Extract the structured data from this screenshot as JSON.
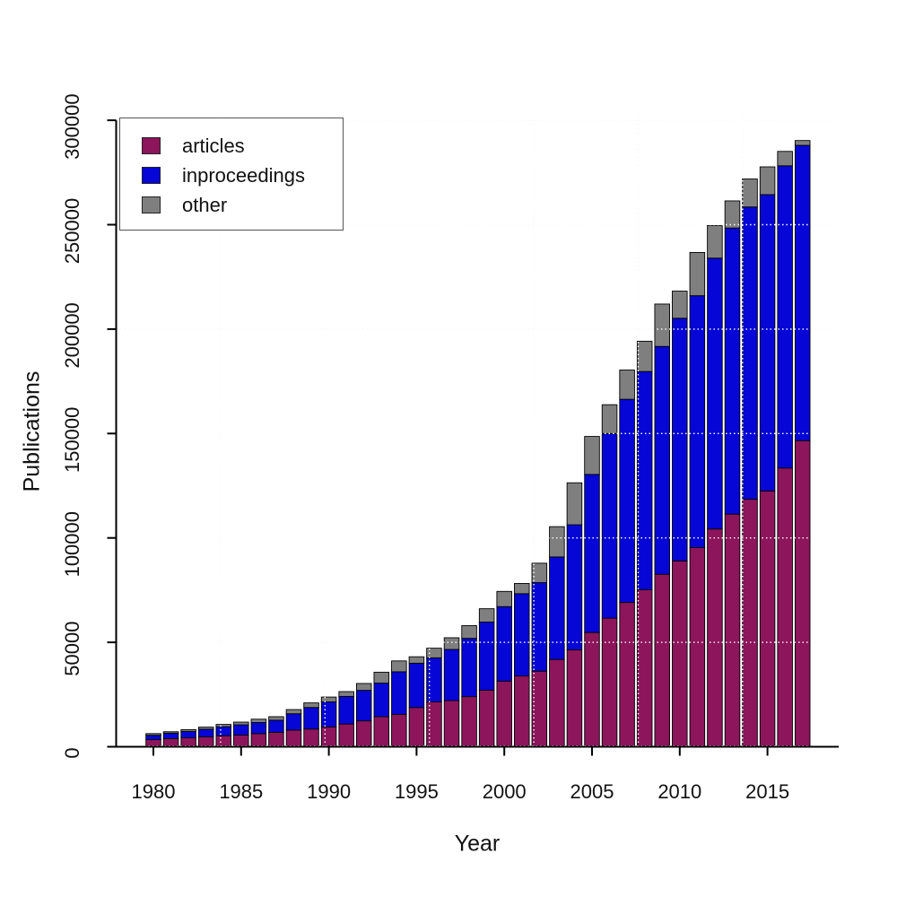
{
  "chart_data": {
    "type": "bar",
    "stacked": true,
    "xlabel": "Year",
    "ylabel": "Publications",
    "background_color": "#ffffff",
    "grid": true,
    "legend_position": "top-left",
    "ylim": [
      0,
      300000
    ],
    "yticks": [
      0,
      50000,
      100000,
      150000,
      200000,
      250000,
      300000
    ],
    "xticks": [
      1980,
      1985,
      1990,
      1995,
      2000,
      2005,
      2010,
      2015
    ],
    "categories": [
      1980,
      1981,
      1982,
      1983,
      1984,
      1985,
      1986,
      1987,
      1988,
      1989,
      1990,
      1991,
      1992,
      1993,
      1994,
      1995,
      1996,
      1997,
      1998,
      1999,
      2000,
      2001,
      2002,
      2003,
      2004,
      2005,
      2006,
      2007,
      2008,
      2009,
      2010,
      2011,
      2012,
      2013,
      2014,
      2015,
      2016,
      2017
    ],
    "series": [
      {
        "name": "articles",
        "color": "#8C155C",
        "values": [
          3400,
          3900,
          4300,
          4700,
          5300,
          5600,
          6300,
          6900,
          8000,
          8500,
          9500,
          10900,
          12400,
          14400,
          15500,
          18800,
          21500,
          22100,
          24000,
          27100,
          31400,
          33900,
          36200,
          41800,
          46400,
          54700,
          61600,
          69100,
          75200,
          82600,
          89000,
          95400,
          104300,
          111400,
          118500,
          122500,
          133500,
          146600
        ]
      },
      {
        "name": "inproceedings",
        "color": "#0606D6",
        "values": [
          2100,
          2600,
          3000,
          3700,
          4300,
          4900,
          5300,
          5800,
          7800,
          10300,
          12000,
          13200,
          14600,
          16100,
          20400,
          21200,
          21100,
          24500,
          27900,
          32600,
          35700,
          39400,
          42400,
          49100,
          59900,
          75700,
          88400,
          97300,
          104500,
          109100,
          116200,
          120600,
          129700,
          137000,
          140000,
          141900,
          144700,
          141400
        ]
      },
      {
        "name": "other",
        "color": "#7F7F7F",
        "values": [
          800,
          700,
          900,
          1000,
          1100,
          1300,
          1600,
          1700,
          2000,
          2200,
          2300,
          2300,
          3300,
          5200,
          5200,
          3100,
          4600,
          5600,
          6100,
          6400,
          7300,
          4900,
          9300,
          14500,
          20100,
          18200,
          13800,
          14000,
          14500,
          20300,
          13000,
          20700,
          15600,
          13000,
          13400,
          13300,
          6900,
          2300
        ]
      }
    ]
  }
}
